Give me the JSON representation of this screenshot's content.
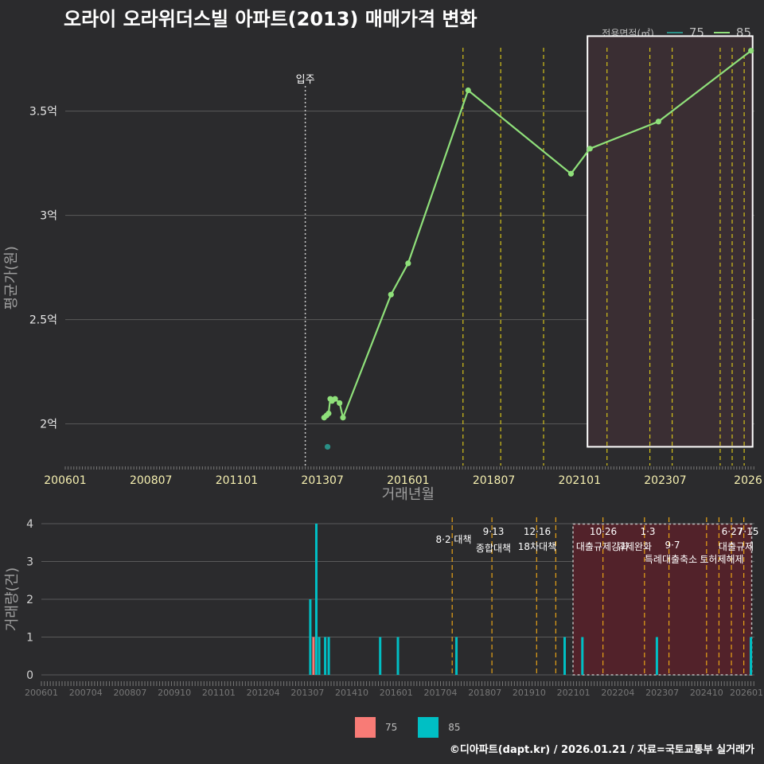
{
  "title": "오라이 오라위더스빌 아파트(2013) 매매가격 변화",
  "footer": "©디아파트(dapt.kr) / 2026.01.21 / 자료=국토교통부 실거래가",
  "colors": {
    "background": "#2b2b2d",
    "series75_line": "#2a8f86",
    "series85_line": "#8fe07a",
    "bar75": "#f87b76",
    "bar85": "#00bfc4",
    "policy_line": "#d4c21a",
    "highlight_fill": "#4e2024",
    "grid": "#5a5a5a"
  },
  "chart_data": [
    {
      "type": "line",
      "name": "price",
      "ylabel": "평균가(원)",
      "xlabel": "거래년월",
      "ylim": [
        1.8,
        3.85
      ],
      "yticks": [
        2.0,
        2.5,
        3.0,
        3.5
      ],
      "ytick_labels": [
        "2억",
        "2.5억",
        "3억",
        "3.5억"
      ],
      "xlim": [
        2006.0,
        2026.1
      ],
      "xticks": [
        2006.0,
        2008.5,
        2011.0,
        2013.5,
        2016.0,
        2018.5,
        2021.0,
        2023.5,
        2026.0
      ],
      "xtick_labels": [
        "200601",
        "200807",
        "201101",
        "201307",
        "201601",
        "201807",
        "202101",
        "202307",
        "2026"
      ],
      "legend_title": "전용면적(㎡)",
      "series": [
        {
          "name": "75",
          "points": [
            [
              2013.65,
              1.89
            ]
          ]
        },
        {
          "name": "85",
          "points": [
            [
              2013.55,
              2.03
            ],
            [
              2013.62,
              2.04
            ],
            [
              2013.68,
              2.05
            ],
            [
              2013.73,
              2.12
            ],
            [
              2013.78,
              2.11
            ],
            [
              2013.87,
              2.12
            ],
            [
              2014.0,
              2.1
            ],
            [
              2014.1,
              2.03
            ],
            [
              2015.5,
              2.62
            ],
            [
              2016.0,
              2.77
            ],
            [
              2017.75,
              3.6
            ],
            [
              2020.75,
              3.2
            ],
            [
              2021.3,
              3.32
            ],
            [
              2023.3,
              3.45
            ],
            [
              2026.0,
              3.79
            ]
          ]
        }
      ],
      "annotations": [
        {
          "label": "입주",
          "x": 2013.0
        }
      ],
      "policy_lines": [
        2017.6,
        2018.7,
        2019.95,
        2021.8,
        2023.05,
        2023.7,
        2025.1,
        2025.45,
        2025.8
      ],
      "highlight_range": [
        2021.3,
        2026.0
      ]
    },
    {
      "type": "bar",
      "name": "volume",
      "ylabel": "거래량(건)",
      "ylim": [
        0,
        4
      ],
      "yticks": [
        0,
        1,
        2,
        3,
        4
      ],
      "ytick_labels": [
        "0",
        "1",
        "2",
        "3",
        "4"
      ],
      "xlim": [
        2006.0,
        2026.1
      ],
      "xticks": [
        2006.0,
        2007.25,
        2008.5,
        2009.75,
        2011.0,
        2012.25,
        2013.5,
        2014.75,
        2016.0,
        2017.25,
        2018.5,
        2019.75,
        2021.0,
        2022.25,
        2023.5,
        2024.75,
        2026.0
      ],
      "xtick_labels": [
        "200601",
        "200704",
        "200807",
        "200910",
        "201101",
        "201204",
        "201307",
        "201410",
        "201601",
        "201704",
        "201807",
        "201910",
        "202101",
        "202204",
        "202307",
        "202410",
        "202601"
      ],
      "legend": [
        "75",
        "85"
      ],
      "series": [
        {
          "name": "75",
          "bars": [
            [
              2013.67,
              1
            ]
          ]
        },
        {
          "name": "85",
          "bars": [
            [
              2013.58,
              2
            ],
            [
              2013.75,
              4
            ],
            [
              2013.83,
              1
            ],
            [
              2014.0,
              1
            ],
            [
              2014.1,
              1
            ],
            [
              2015.55,
              1
            ],
            [
              2016.05,
              1
            ],
            [
              2017.7,
              1
            ],
            [
              2020.75,
              1
            ],
            [
              2021.25,
              1
            ],
            [
              2023.35,
              1
            ],
            [
              2026.0,
              1
            ]
          ]
        }
      ],
      "policy_events": [
        {
          "x": 2017.58,
          "label": "8·2 대책",
          "date": ""
        },
        {
          "x": 2018.7,
          "label": "종합대책",
          "date": "9·13"
        },
        {
          "x": 2019.96,
          "label": "18차대책",
          "date": "12·16"
        },
        {
          "x": 2020.5,
          "label": "",
          "date": ""
        },
        {
          "x": 2021.83,
          "label": "대출규제강화",
          "date": "10·26"
        },
        {
          "x": 2023.0,
          "label": "규제완화",
          "date": "1·3"
        },
        {
          "x": 2023.69,
          "label": "특례대출축소",
          "date": "9·7"
        },
        {
          "x": 2024.75,
          "label": "토허제해제",
          "date": ""
        },
        {
          "x": 2025.1,
          "label": "",
          "date": "6·27"
        },
        {
          "x": 2025.45,
          "label": "대출규제",
          "date": "7·15"
        },
        {
          "x": 2025.8,
          "label": "",
          "date": ""
        }
      ],
      "highlight_range": [
        2021.3,
        2026.0
      ]
    }
  ]
}
